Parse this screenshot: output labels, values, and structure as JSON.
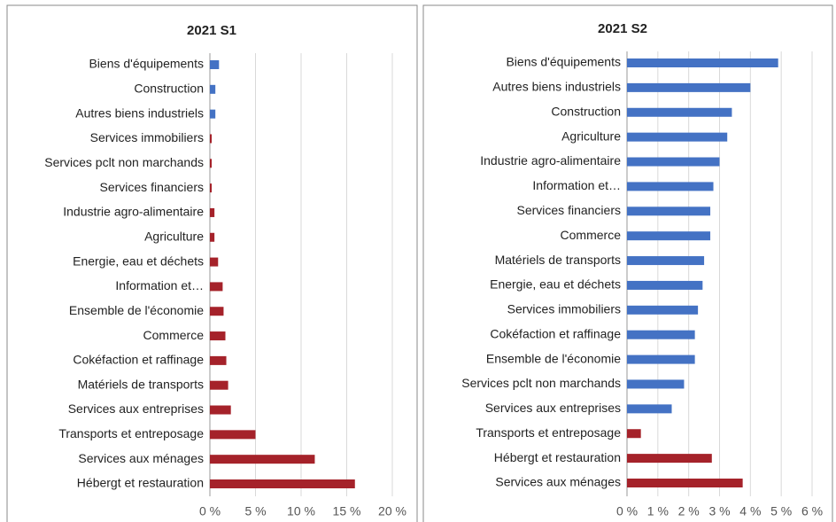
{
  "chart_data": [
    {
      "type": "bar",
      "orientation": "horizontal",
      "title": "2021 S1",
      "categories": [
        "Biens d'équipements",
        "Construction",
        "Autres biens industriels",
        "Services immobiliers",
        "Services pclt non marchands",
        "Services financiers",
        "Industrie agro-alimentaire",
        "Agriculture",
        "Energie, eau et déchets",
        "Information et…",
        "Ensemble de l'économie",
        "Commerce",
        "Cokéfaction et raffinage",
        "Matériels de transports",
        "Services aux entreprises",
        "Transports et entreposage",
        "Services aux ménages",
        "Hébergt et restauration"
      ],
      "values": [
        1.0,
        0.6,
        0.6,
        0.2,
        0.2,
        0.2,
        0.5,
        0.5,
        0.9,
        1.4,
        1.5,
        1.7,
        1.8,
        2.0,
        2.3,
        5.0,
        11.5,
        15.9
      ],
      "colors": [
        "#4472c4",
        "#4472c4",
        "#4472c4",
        "#a5222a",
        "#a5222a",
        "#a5222a",
        "#a5222a",
        "#a5222a",
        "#a5222a",
        "#a5222a",
        "#a5222a",
        "#a5222a",
        "#a5222a",
        "#a5222a",
        "#a5222a",
        "#a5222a",
        "#a5222a",
        "#a5222a"
      ],
      "xlim": [
        0,
        20
      ],
      "xticks": [
        {
          "value": 0,
          "label": "0 %"
        },
        {
          "value": 5,
          "label": "5 %"
        },
        {
          "value": 10,
          "label": "10 %"
        },
        {
          "value": 15,
          "label": "15 %"
        },
        {
          "value": 20,
          "label": "20 %"
        }
      ],
      "grid": true
    },
    {
      "type": "bar",
      "orientation": "horizontal",
      "title": "2021 S2",
      "categories": [
        "Biens d'équipements",
        "Autres biens industriels",
        "Construction",
        "Agriculture",
        "Industrie agro-alimentaire",
        "Information et…",
        "Services financiers",
        "Commerce",
        "Matériels de transports",
        "Energie, eau et déchets",
        "Services immobiliers",
        "Cokéfaction et raffinage",
        "Ensemble de l'économie",
        "Services pclt non marchands",
        "Services aux entreprises",
        "Transports et entreposage",
        "Hébergt et restauration",
        "Services aux ménages"
      ],
      "values": [
        4.9,
        4.0,
        3.4,
        3.25,
        3.0,
        2.8,
        2.7,
        2.7,
        2.5,
        2.45,
        2.3,
        2.2,
        2.2,
        1.85,
        1.45,
        0.45,
        2.75,
        3.75
      ],
      "colors": [
        "#4472c4",
        "#4472c4",
        "#4472c4",
        "#4472c4",
        "#4472c4",
        "#4472c4",
        "#4472c4",
        "#4472c4",
        "#4472c4",
        "#4472c4",
        "#4472c4",
        "#4472c4",
        "#4472c4",
        "#4472c4",
        "#4472c4",
        "#a5222a",
        "#a5222a",
        "#a5222a"
      ],
      "xlim": [
        0,
        6
      ],
      "xticks": [
        {
          "value": 0,
          "label": "0 %"
        },
        {
          "value": 1,
          "label": "1 %"
        },
        {
          "value": 2,
          "label": "2 %"
        },
        {
          "value": 3,
          "label": "3 %"
        },
        {
          "value": 4,
          "label": "4 %"
        },
        {
          "value": 5,
          "label": "5 %"
        },
        {
          "value": 6,
          "label": "6 %"
        }
      ],
      "grid": true
    }
  ]
}
